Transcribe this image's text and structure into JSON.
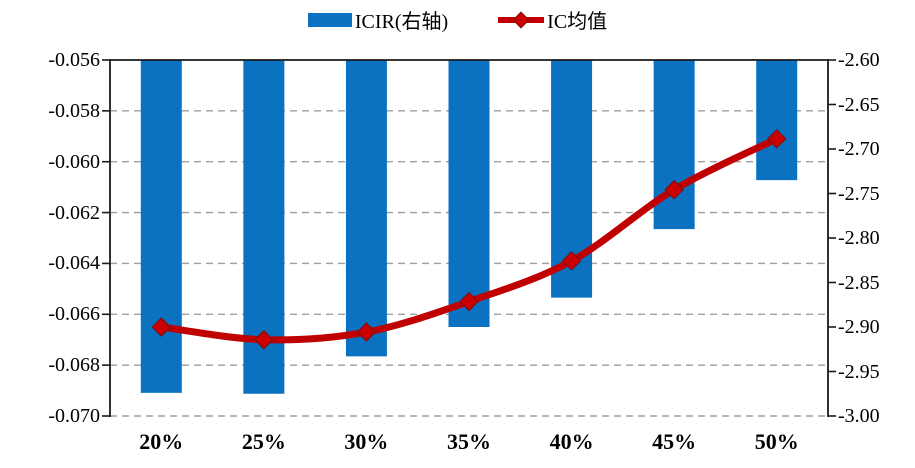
{
  "legend": {
    "items": [
      {
        "label": "ICIR(右轴)",
        "marker": "bar-swatch"
      },
      {
        "label": "IC均值",
        "marker": "line-diamond"
      }
    ]
  },
  "colors": {
    "bar_blue": "#0B72C2",
    "line_red": "#C00000",
    "marker_red": "#CC0000",
    "marker_edge": "#7F1010",
    "grid_gray": "#9E9E9E",
    "axis_black": "#1A1A1A",
    "text_black": "#000000"
  },
  "chart_data": {
    "type": "bar+line combo",
    "categories": [
      "20%",
      "25%",
      "30%",
      "35%",
      "40%",
      "45%",
      "50%"
    ],
    "series": [
      {
        "name": "ICIR(右轴)",
        "type": "bar",
        "axis": "right",
        "color": "#0B72C2",
        "bars_hang_from_axis_max": true,
        "values": [
          -2.974,
          -2.975,
          -2.933,
          -2.9,
          -2.867,
          -2.79,
          -2.735
        ]
      },
      {
        "name": "IC均值",
        "type": "line",
        "axis": "left",
        "color": "#C00000",
        "marker": "diamond",
        "smoothed": true,
        "values": [
          -0.0665,
          -0.067,
          -0.0667,
          -0.0655,
          -0.0639,
          -0.0611,
          -0.0591
        ]
      }
    ],
    "left_axis": {
      "min": -0.07,
      "max": -0.056,
      "tick_step": 0.002,
      "tick_labels": [
        "-0.056",
        "-0.058",
        "-0.060",
        "-0.062",
        "-0.064",
        "-0.066",
        "-0.068",
        "-0.070"
      ]
    },
    "right_axis": {
      "min": -3.0,
      "max": -2.6,
      "tick_step": 0.05,
      "tick_labels": [
        "-2.60",
        "-2.65",
        "-2.70",
        "-2.75",
        "-2.80",
        "-2.85",
        "-2.90",
        "-2.95",
        "-3.00"
      ]
    },
    "x_axis": {
      "tick_labels": [
        "20%",
        "25%",
        "30%",
        "35%",
        "40%",
        "45%",
        "50%"
      ]
    },
    "grid": "horizontal dashed lines on primary (left) axis ticks",
    "legend_position": "top-center"
  }
}
